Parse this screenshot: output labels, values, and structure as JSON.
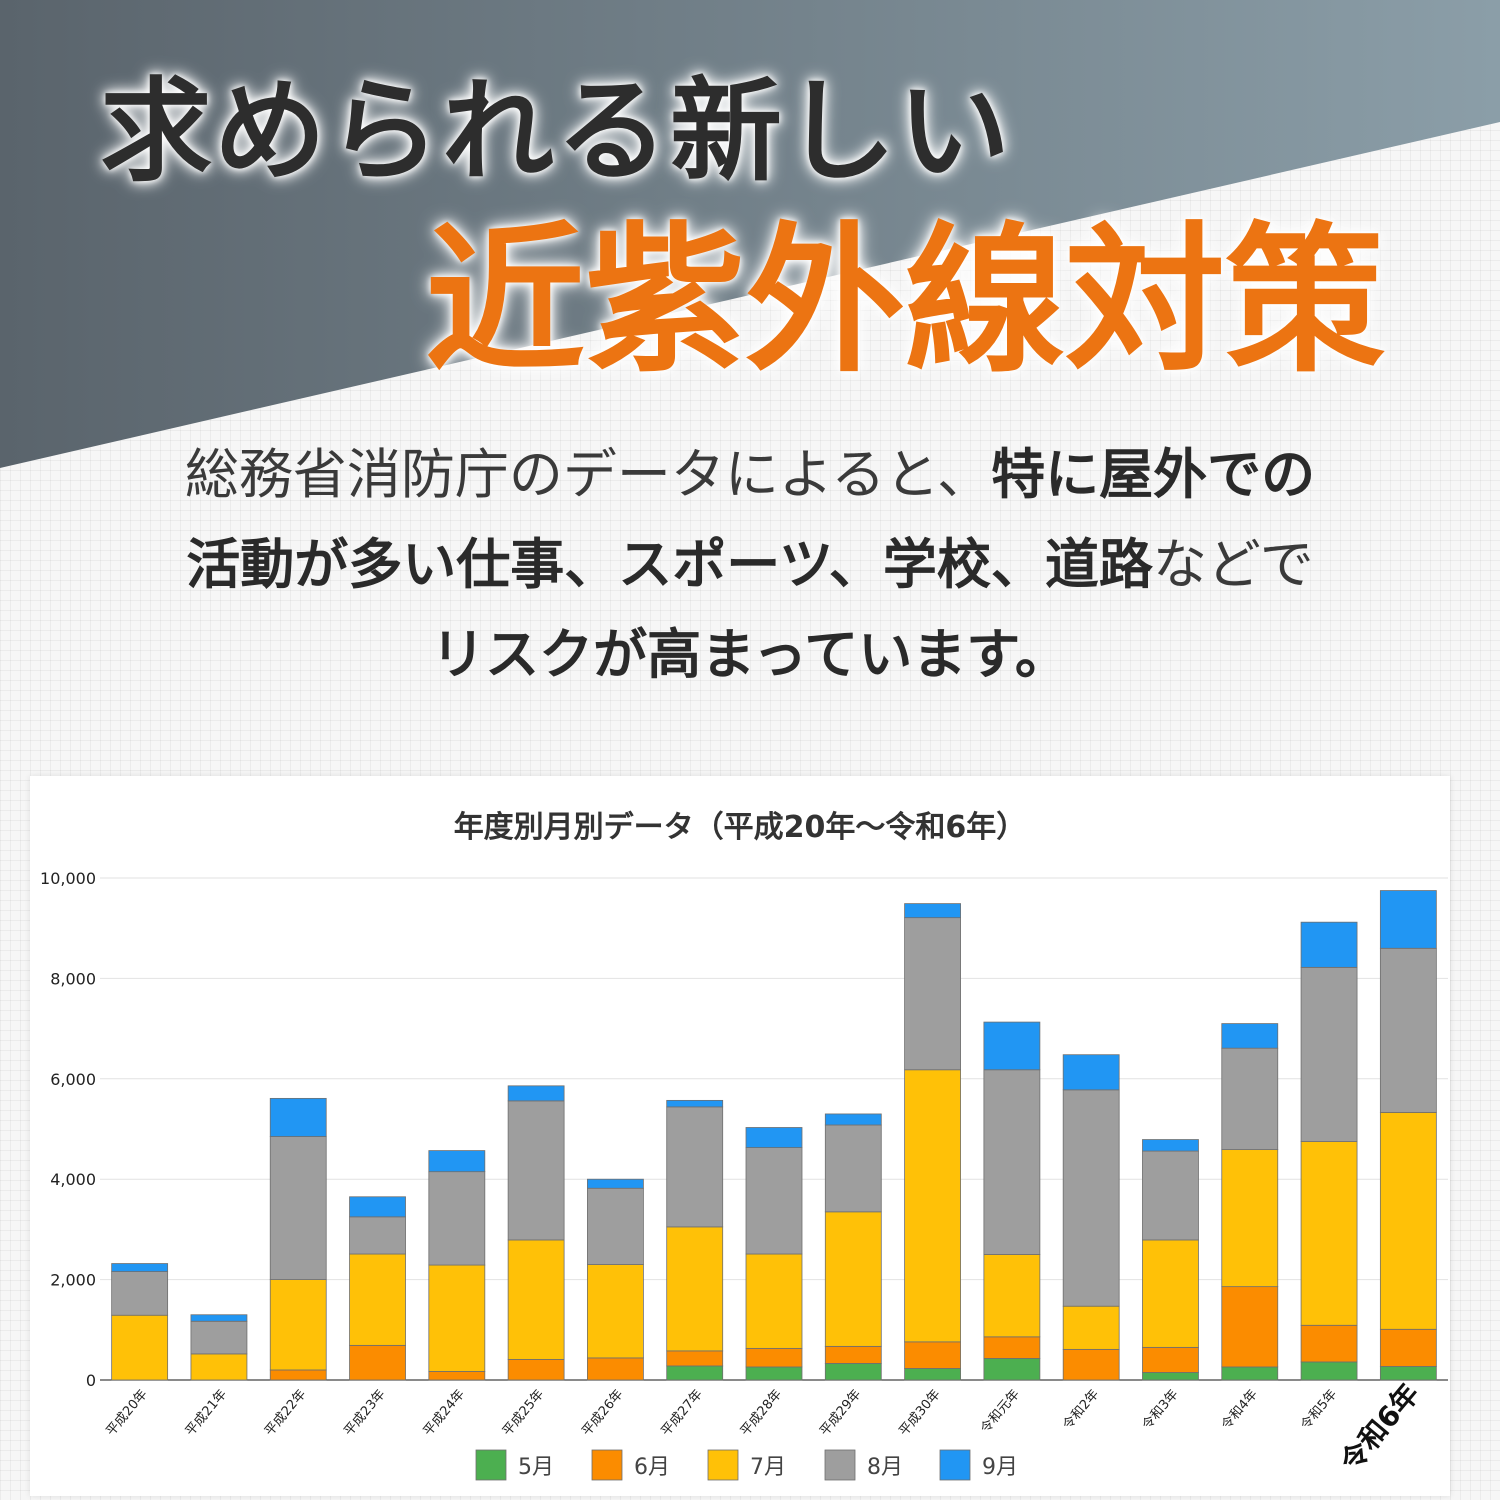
{
  "header": {
    "title_line1": "求められる新しい",
    "title_line2": "近紫外線対策",
    "title_color": "#ec7412"
  },
  "intro": {
    "l1_a": "総務省消防庁のデータによると、",
    "l1_b": "特に屋外での",
    "l2_a": "活動が多い仕事、スポーツ、学校、道路",
    "l2_b": "などで",
    "l3_a": "リスクが高まっています。"
  },
  "chart_data": {
    "type": "bar",
    "stacked": true,
    "title": "年度別月別データ（平成20年〜令和6年）",
    "xlabel": "",
    "ylabel": "",
    "ylim": [
      0,
      10000
    ],
    "yticks": [
      "0",
      "2,000",
      "4,000",
      "6,000",
      "8,000",
      "10,000"
    ],
    "grid": true,
    "legend_position": "bottom",
    "highlight_category": "令和6年",
    "categories": [
      "平成20年",
      "平成21年",
      "平成22年",
      "平成23年",
      "平成24年",
      "平成25年",
      "平成26年",
      "平成27年",
      "平成28年",
      "平成29年",
      "平成30年",
      "令和元年",
      "令和2年",
      "令和3年",
      "令和4年",
      "令和5年",
      "令和6年"
    ],
    "series": [
      {
        "name": "5月",
        "color": "#4caf50",
        "values": [
          0,
          0,
          0,
          0,
          0,
          0,
          0,
          280,
          260,
          330,
          230,
          430,
          0,
          150,
          260,
          360,
          270
        ]
      },
      {
        "name": "6月",
        "color": "#fb8c00",
        "values": [
          0,
          0,
          200,
          690,
          170,
          410,
          440,
          300,
          370,
          340,
          530,
          430,
          610,
          500,
          1600,
          730,
          740
        ]
      },
      {
        "name": "7月",
        "color": "#ffc107",
        "values": [
          1290,
          520,
          1800,
          1820,
          2120,
          2380,
          1860,
          2470,
          1880,
          2680,
          5420,
          1640,
          860,
          2140,
          2730,
          3660,
          4320
        ]
      },
      {
        "name": "8月",
        "color": "#9e9e9e",
        "values": [
          870,
          650,
          2850,
          740,
          1860,
          2770,
          1520,
          2390,
          2120,
          1730,
          3030,
          3680,
          4310,
          1770,
          2020,
          3470,
          3270
        ]
      },
      {
        "name": "9月",
        "color": "#2196f3",
        "values": [
          160,
          130,
          760,
          400,
          420,
          300,
          180,
          130,
          400,
          220,
          280,
          950,
          700,
          230,
          490,
          900,
          1150
        ]
      }
    ]
  }
}
